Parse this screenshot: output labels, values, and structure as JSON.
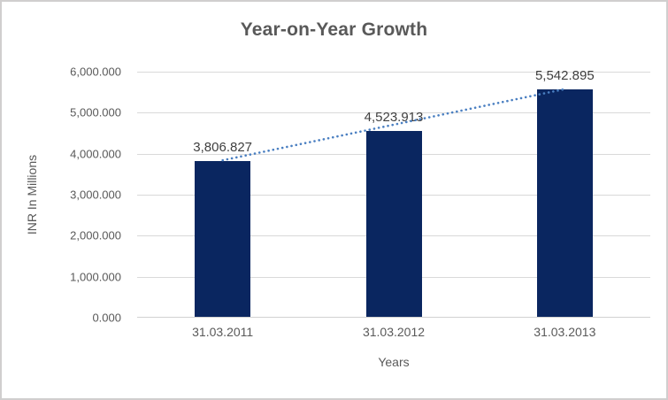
{
  "chart_data": {
    "type": "bar",
    "title": "Year-on-Year Growth",
    "xlabel": "Years",
    "ylabel": "INR In Millions",
    "categories": [
      "31.03.2011",
      "31.03.2012",
      "31.03.2013"
    ],
    "values": [
      3806.827,
      4523.913,
      5542.895
    ],
    "value_labels": [
      "3,806.827",
      "4,523.913",
      "5,542.895"
    ],
    "ylim": [
      0,
      6000
    ],
    "ytick_step": 1000,
    "ytick_labels": [
      "0.000",
      "1,000.000",
      "2,000.000",
      "3,000.000",
      "4,000.000",
      "5,000.000",
      "6,000.000"
    ],
    "grid": true,
    "legend": "none",
    "bar_color": "#0a2660",
    "trendline": {
      "type": "linear",
      "style": "dotted",
      "color": "#4a7fc1"
    },
    "colors": {
      "title_text": "#595959",
      "tick_text": "#595959",
      "data_label_text": "#3f3f3f",
      "gridline": "#d9d9d9",
      "frame_border": "#d0cece"
    }
  }
}
